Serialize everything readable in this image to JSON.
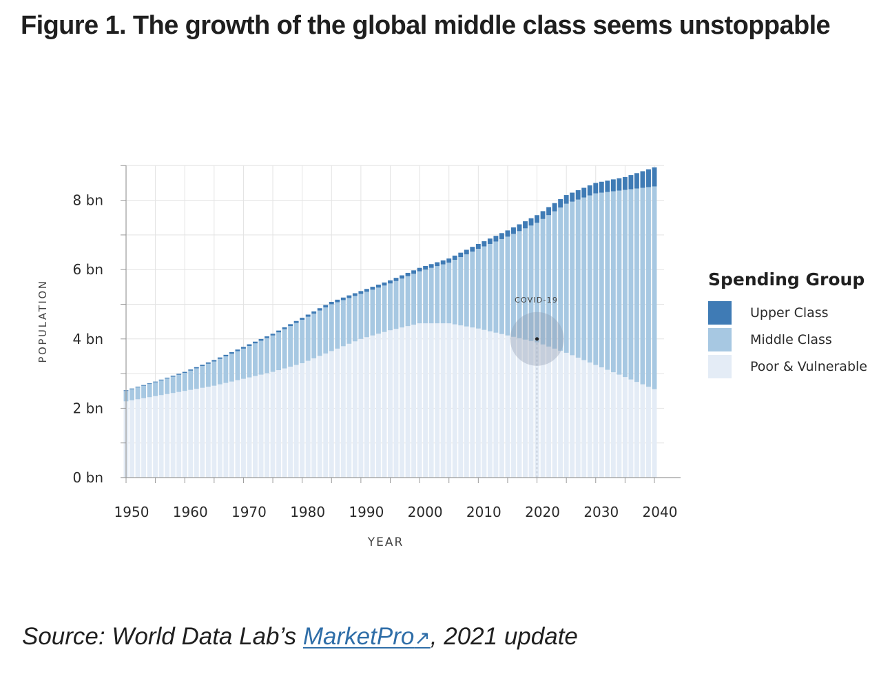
{
  "title": "Figure 1. The growth of the global middle class seems unstoppable",
  "source": {
    "prefix": "Source: World Data Lab’s ",
    "link_text": "MarketPro",
    "link_icon": "↗",
    "suffix": ", 2021 update"
  },
  "colors": {
    "upper": "#3f7bb5",
    "middle": "#a7c8e2",
    "poor": "#e4ecf6",
    "grid": "#e3e3e3",
    "axis": "#9a9a9a"
  },
  "chart_data": {
    "type": "bar",
    "stacked": true,
    "xlabel": "YEAR",
    "ylabel": "POPULATION",
    "ylim": [
      0,
      9
    ],
    "yticks": [
      {
        "value": 0,
        "label": "0 bn"
      },
      {
        "value": 2,
        "label": "2 bn"
      },
      {
        "value": 4,
        "label": "4 bn"
      },
      {
        "value": 6,
        "label": "6 bn"
      },
      {
        "value": 8,
        "label": "8 bn"
      }
    ],
    "xticks": [
      1950,
      1960,
      1970,
      1980,
      1990,
      2000,
      2010,
      2020,
      2030,
      2040
    ],
    "x_range": [
      1950,
      2040
    ],
    "grid": true,
    "legend": {
      "title": "Spending Group",
      "placement": "right",
      "items": [
        "Upper Class",
        "Middle Class",
        "Poor & Vulnerable"
      ]
    },
    "annotation": {
      "label": "COVID-19",
      "x": 2020,
      "y": 4.0
    },
    "x": [
      1950,
      1955,
      1960,
      1965,
      1970,
      1975,
      1980,
      1985,
      1990,
      1995,
      2000,
      2005,
      2010,
      2015,
      2020,
      2025,
      2030,
      2035,
      2040
    ],
    "series": [
      {
        "name": "Poor & Vulnerable",
        "values": [
          2.2,
          2.35,
          2.5,
          2.65,
          2.85,
          3.05,
          3.3,
          3.65,
          4.0,
          4.25,
          4.45,
          4.45,
          4.3,
          4.1,
          3.9,
          3.6,
          3.25,
          2.9,
          2.55
        ]
      },
      {
        "name": "Middle Class",
        "values": [
          0.3,
          0.4,
          0.52,
          0.7,
          0.87,
          1.05,
          1.25,
          1.35,
          1.3,
          1.35,
          1.5,
          1.75,
          2.3,
          2.85,
          3.45,
          4.3,
          4.95,
          5.4,
          5.85
        ]
      },
      {
        "name": "Upper Class",
        "values": [
          0.02,
          0.02,
          0.03,
          0.04,
          0.05,
          0.05,
          0.06,
          0.07,
          0.08,
          0.09,
          0.1,
          0.12,
          0.14,
          0.18,
          0.22,
          0.25,
          0.3,
          0.37,
          0.55
        ]
      }
    ]
  }
}
